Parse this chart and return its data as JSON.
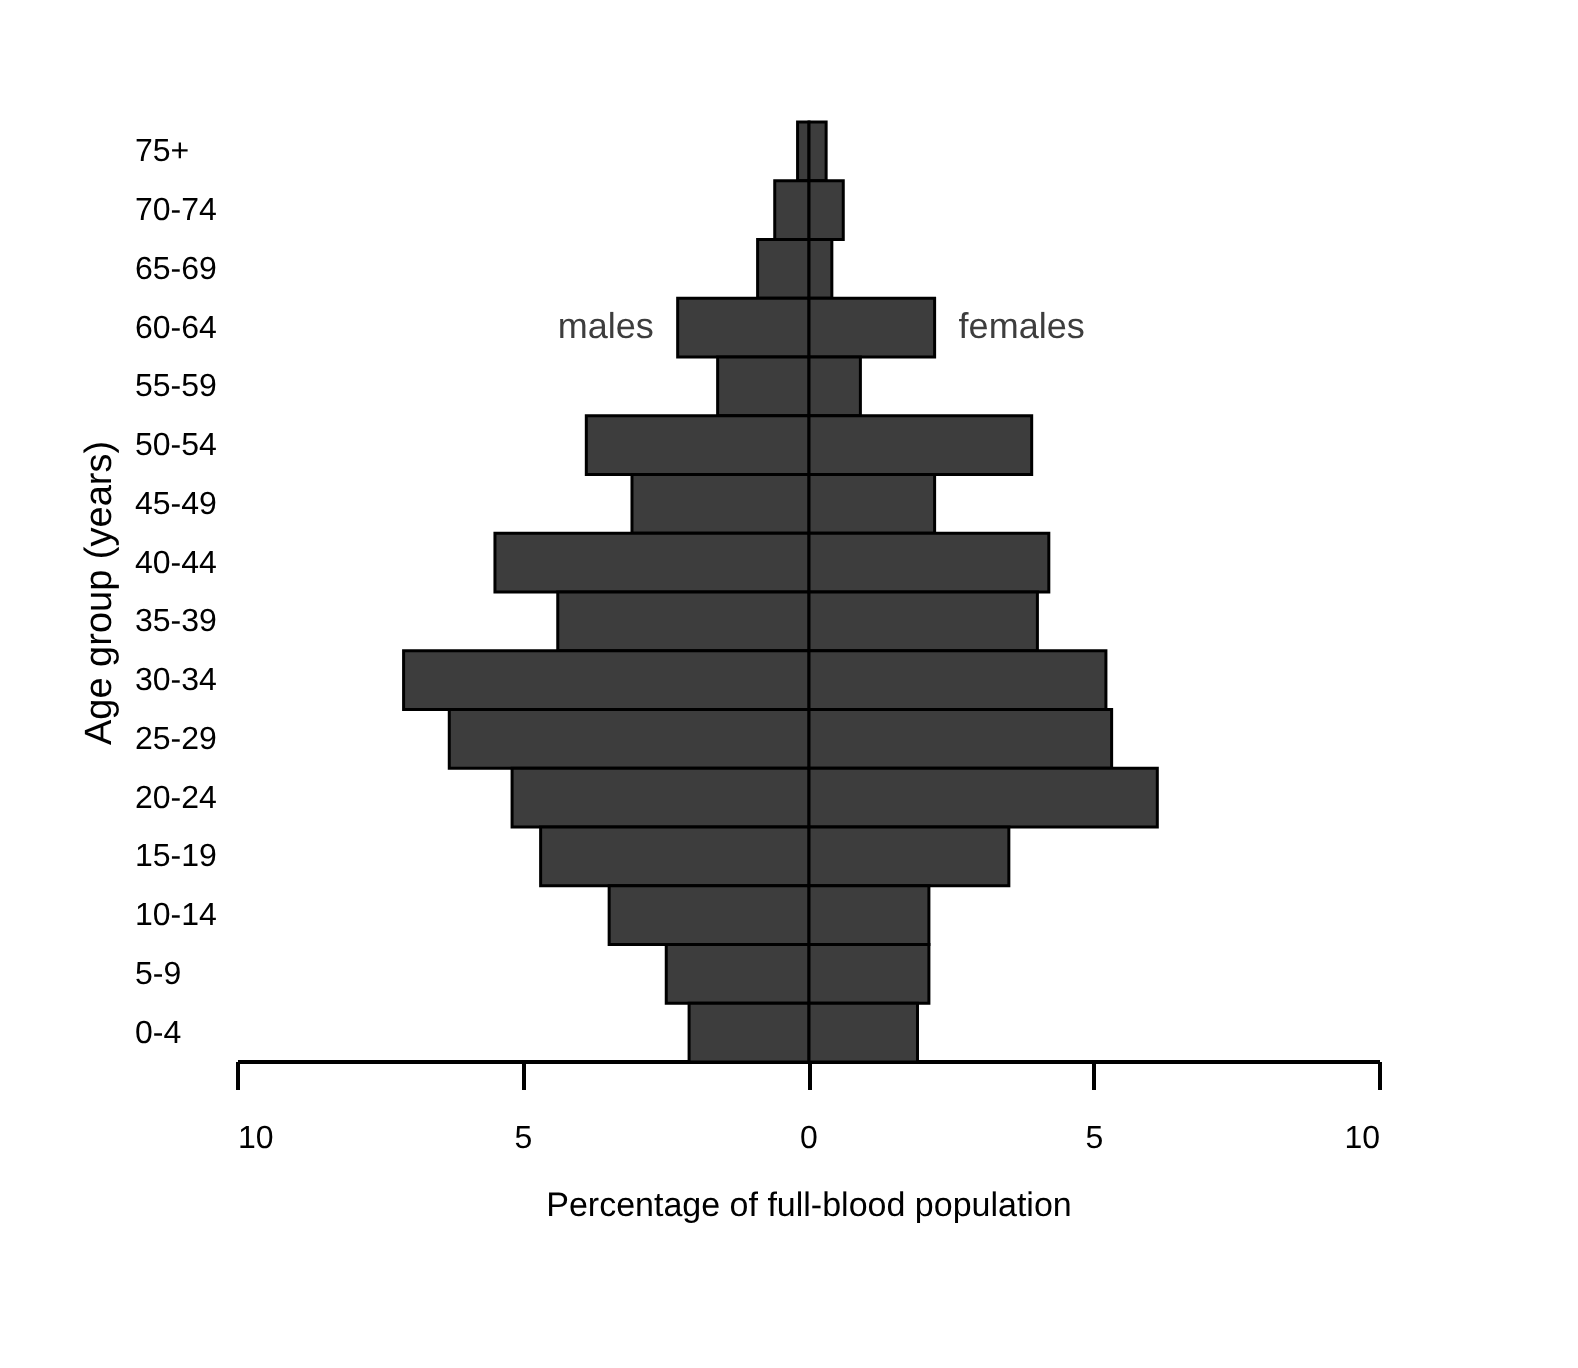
{
  "chart_data": {
    "type": "bar",
    "orientation": "horizontal",
    "stacked": true,
    "xlabel": "Percentage of full-blood population",
    "ylabel": "Age group (years)",
    "categories": [
      "75+",
      "70-74",
      "65-69",
      "60-64",
      "55-59",
      "50-54",
      "45-49",
      "40-44",
      "35-39",
      "30-34",
      "25-29",
      "20-24",
      "15-19",
      "10-14",
      "5-9",
      "0-4"
    ],
    "series": [
      {
        "name": "males",
        "color": "#3d3d3d",
        "values": [
          -0.2,
          -0.6,
          -0.9,
          -2.3,
          -1.6,
          -3.9,
          -3.1,
          -5.5,
          -4.4,
          -7.1,
          -6.3,
          -5.2,
          -4.7,
          -3.5,
          -2.5,
          -2.1
        ]
      },
      {
        "name": "females",
        "color": "#3d3d3d",
        "values": [
          0.3,
          0.6,
          0.4,
          2.2,
          0.9,
          3.9,
          2.2,
          4.2,
          4.0,
          5.2,
          5.3,
          6.1,
          3.5,
          2.1,
          2.1,
          1.9
        ]
      }
    ],
    "xlim": [
      -10,
      10
    ],
    "xticks": [
      {
        "value": -10,
        "label": "10"
      },
      {
        "value": -5,
        "label": "5"
      },
      0,
      5,
      10
    ],
    "grid": false,
    "legend": false
  }
}
